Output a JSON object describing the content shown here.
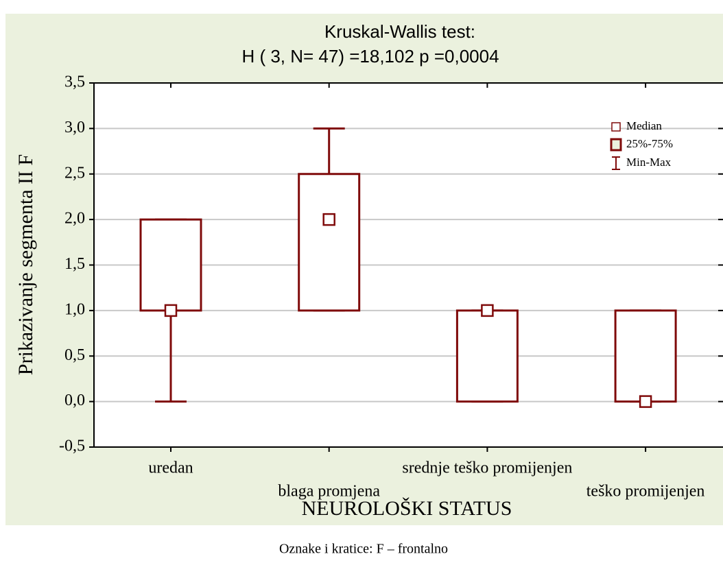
{
  "chart_data": {
    "type": "box",
    "title": [
      "Kruskal-Wallis test:",
      "H ( 3, N= 47) =18,102 p =0,0004"
    ],
    "ylabel": "Prikazivanje segmenta II F",
    "xlabel": "NEUROLOŠKI STATUS",
    "caption": "Oznake i kratice: F – frontalno",
    "categories": [
      "uredan",
      "blaga promjena",
      "srednje teško promijenjen",
      "teško promijenjen"
    ],
    "median": [
      1,
      2,
      1,
      0
    ],
    "q1": [
      1,
      1,
      0,
      0
    ],
    "q3": [
      2,
      2.5,
      1,
      1
    ],
    "min": [
      0,
      1,
      0,
      0
    ],
    "max": [
      2,
      3,
      1,
      1
    ],
    "legend": [
      "Median",
      "25%-75%",
      "Min-Max"
    ],
    "color": "#7f0a0a",
    "background": "#ebf1de",
    "ylim": [
      -0.5,
      3.5
    ],
    "yticks": [
      {
        "value": -0.5,
        "label": "-0,5"
      },
      {
        "value": 0,
        "label": "0,0"
      },
      {
        "value": 0.5,
        "label": "0,5"
      },
      {
        "value": 1,
        "label": "1,0"
      },
      {
        "value": 1.5,
        "label": "1,5"
      },
      {
        "value": 2,
        "label": "2,0"
      },
      {
        "value": 2.5,
        "label": "2,5"
      },
      {
        "value": 3,
        "label": "3,0"
      },
      {
        "value": 3.5,
        "label": "3,5"
      }
    ],
    "grid": true
  }
}
